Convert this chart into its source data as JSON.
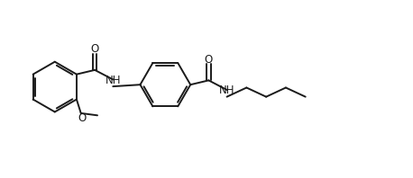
{
  "background_color": "#ffffff",
  "line_color": "#1a1a1a",
  "line_width": 1.4,
  "font_size": 8.5,
  "figsize": [
    4.58,
    1.98
  ],
  "dpi": 100,
  "xlim": [
    0,
    9.5
  ],
  "ylim": [
    0,
    4.0
  ]
}
